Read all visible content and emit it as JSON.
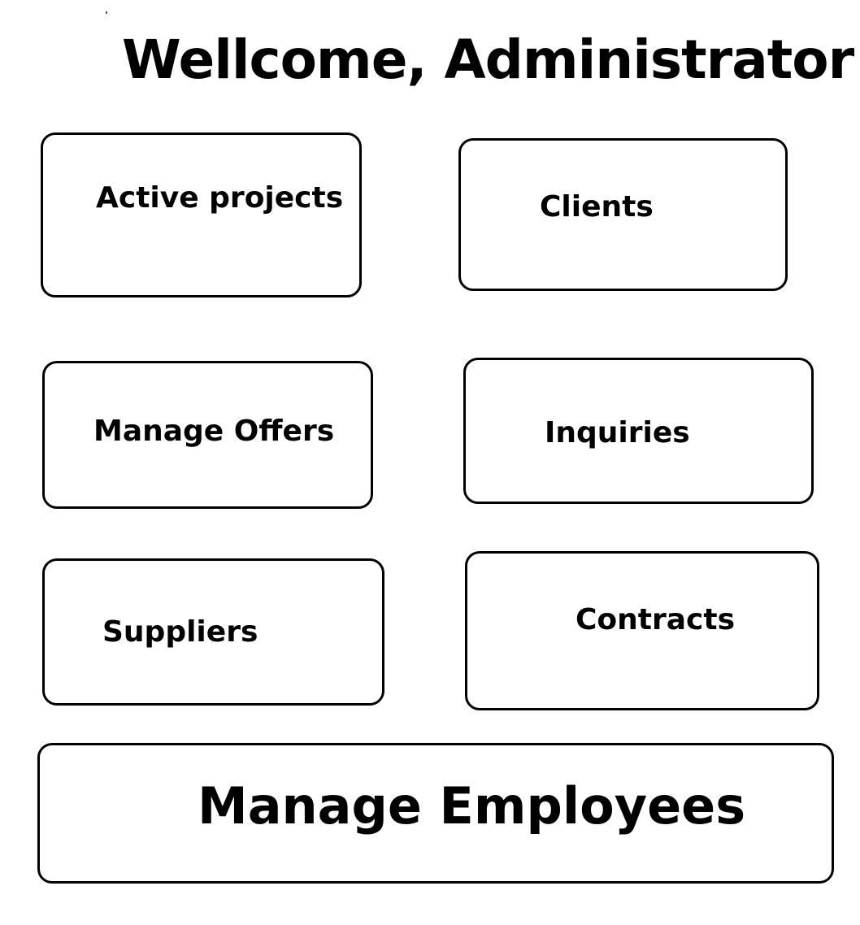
{
  "header": {
    "title": "Wellcome, Administrator!"
  },
  "menu": {
    "active_projects": "Active projects",
    "clients": "Clients",
    "manage_offers": "Manage Offers",
    "inquiries": "Inquiries",
    "suppliers": "Suppliers",
    "contracts": "Contracts",
    "manage_employees": "Manage Employees"
  }
}
